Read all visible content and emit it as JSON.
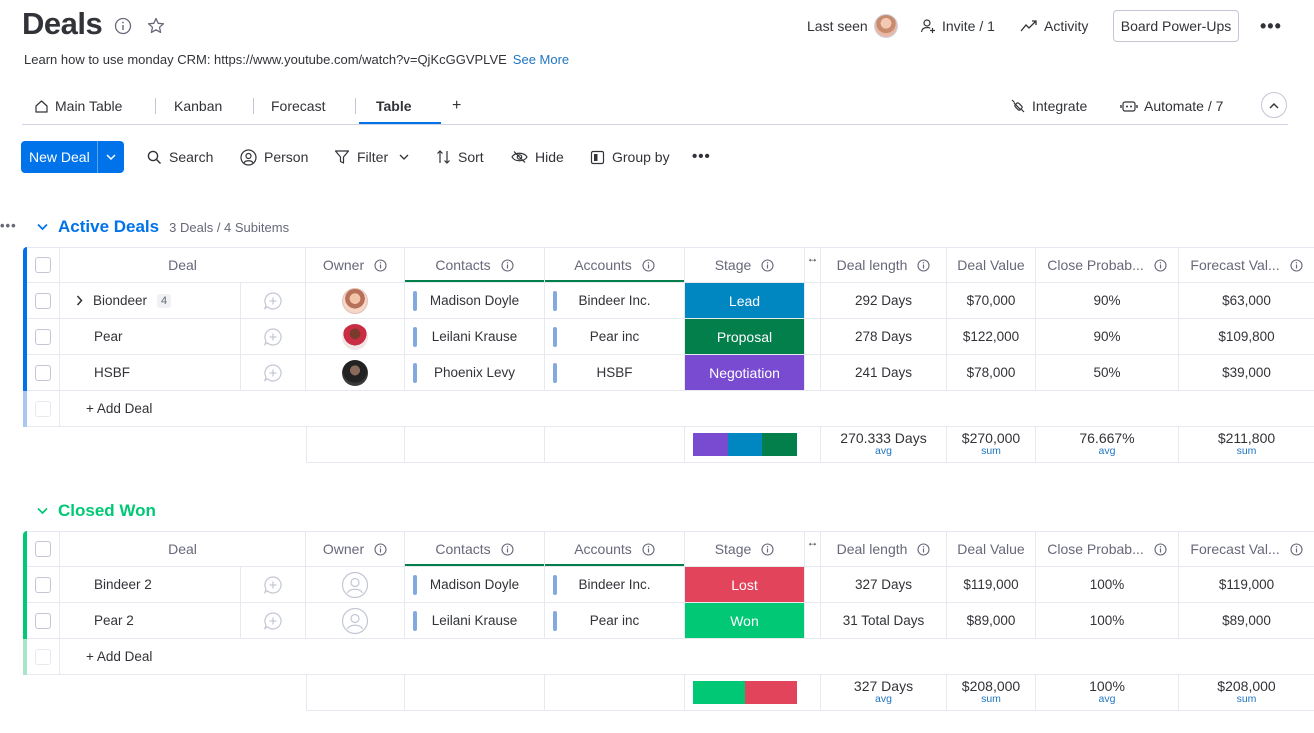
{
  "board": {
    "title": "Deals",
    "description": "Learn how to use monday CRM: https://www.youtube.com/watch?v=QjKcGGVPLVE",
    "see_more": "See More"
  },
  "header": {
    "last_seen": "Last seen",
    "invite": "Invite / 1",
    "activity": "Activity",
    "power_ups": "Board Power-Ups"
  },
  "tabs": [
    {
      "label": "Main Table",
      "icon": "home-icon"
    },
    {
      "label": "Kanban"
    },
    {
      "label": "Forecast"
    },
    {
      "label": "Table",
      "active": true
    },
    {
      "label": "+"
    }
  ],
  "tab_actions": {
    "integrate": "Integrate",
    "automate": "Automate / 7"
  },
  "toolbar": {
    "new_deal": "New Deal",
    "search": "Search",
    "person": "Person",
    "filter": "Filter",
    "sort": "Sort",
    "hide": "Hide",
    "group_by": "Group by"
  },
  "columns": [
    "Deal",
    "Owner",
    "Contacts",
    "Accounts",
    "Stage",
    "Deal length",
    "Deal Value",
    "Close Probab...",
    "Forecast Val..."
  ],
  "colors": {
    "active_group": "#0073ea",
    "closed_group": "#00c875",
    "lead": "#0086c0",
    "proposal": "#037f4c",
    "negotiation": "#784bd1",
    "lost": "#e2445c",
    "won": "#00c875"
  },
  "groups": [
    {
      "name": "Active Deals",
      "count": "3 Deals / 4 Subitems",
      "rows": [
        {
          "deal": "Biondeer",
          "subitems": "4",
          "contact": "Madison Doyle",
          "account": "Bindeer Inc.",
          "stage": "Lead",
          "length": "292 Days",
          "value": "$70,000",
          "prob": "90%",
          "forecast": "$63,000"
        },
        {
          "deal": "Pear",
          "contact": "Leilani Krause",
          "account": "Pear inc",
          "stage": "Proposal",
          "length": "278 Days",
          "value": "$122,000",
          "prob": "90%",
          "forecast": "$109,800"
        },
        {
          "deal": "HSBF",
          "contact": "Phoenix Levy",
          "account": "HSBF",
          "stage": "Negotiation",
          "length": "241 Days",
          "value": "$78,000",
          "prob": "50%",
          "forecast": "$39,000"
        }
      ],
      "add": "+ Add Deal",
      "summary": {
        "length": "270.333 Days",
        "length_agg": "avg",
        "value": "$270,000",
        "value_agg": "sum",
        "prob": "76.667%",
        "prob_agg": "avg",
        "forecast": "$211,800",
        "forecast_agg": "sum"
      }
    },
    {
      "name": "Closed Won",
      "rows": [
        {
          "deal": "Bindeer 2",
          "contact": "Madison Doyle",
          "account": "Bindeer Inc.",
          "stage": "Lost",
          "length": "327 Days",
          "value": "$119,000",
          "prob": "100%",
          "forecast": "$119,000"
        },
        {
          "deal": "Pear 2",
          "contact": "Leilani Krause",
          "account": "Pear inc",
          "stage": "Won",
          "length": "31 Total Days",
          "value": "$89,000",
          "prob": "100%",
          "forecast": "$89,000"
        }
      ],
      "add": "+ Add Deal",
      "summary": {
        "length": "327 Days",
        "length_agg": "avg",
        "value": "$208,000",
        "value_agg": "sum",
        "prob": "100%",
        "prob_agg": "avg",
        "forecast": "$208,000",
        "forecast_agg": "sum"
      }
    }
  ]
}
